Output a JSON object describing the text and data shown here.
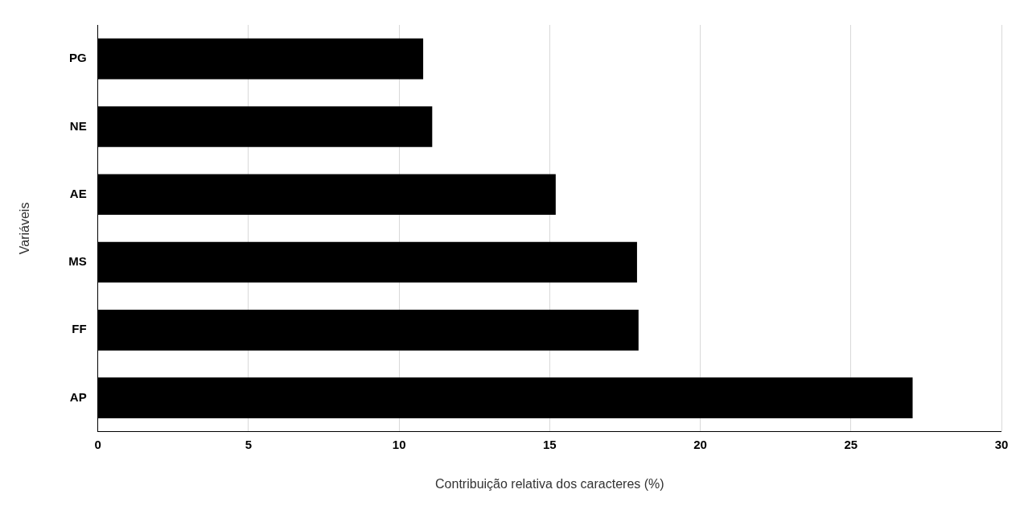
{
  "chart_data": {
    "type": "bar",
    "orientation": "horizontal",
    "categories": [
      "PG",
      "NE",
      "AE",
      "MS",
      "FF",
      "AP"
    ],
    "values": [
      10.8,
      11.1,
      15.2,
      17.9,
      17.95,
      27.05
    ],
    "color": "#000000",
    "xlim": [
      0,
      30
    ],
    "xticks": [
      0,
      5,
      10,
      15,
      20,
      25,
      30
    ],
    "grid": "x",
    "xlabel": "Contribuição relativa dos caracteres (%)",
    "ylabel": "Variáveis",
    "legend": false
  }
}
